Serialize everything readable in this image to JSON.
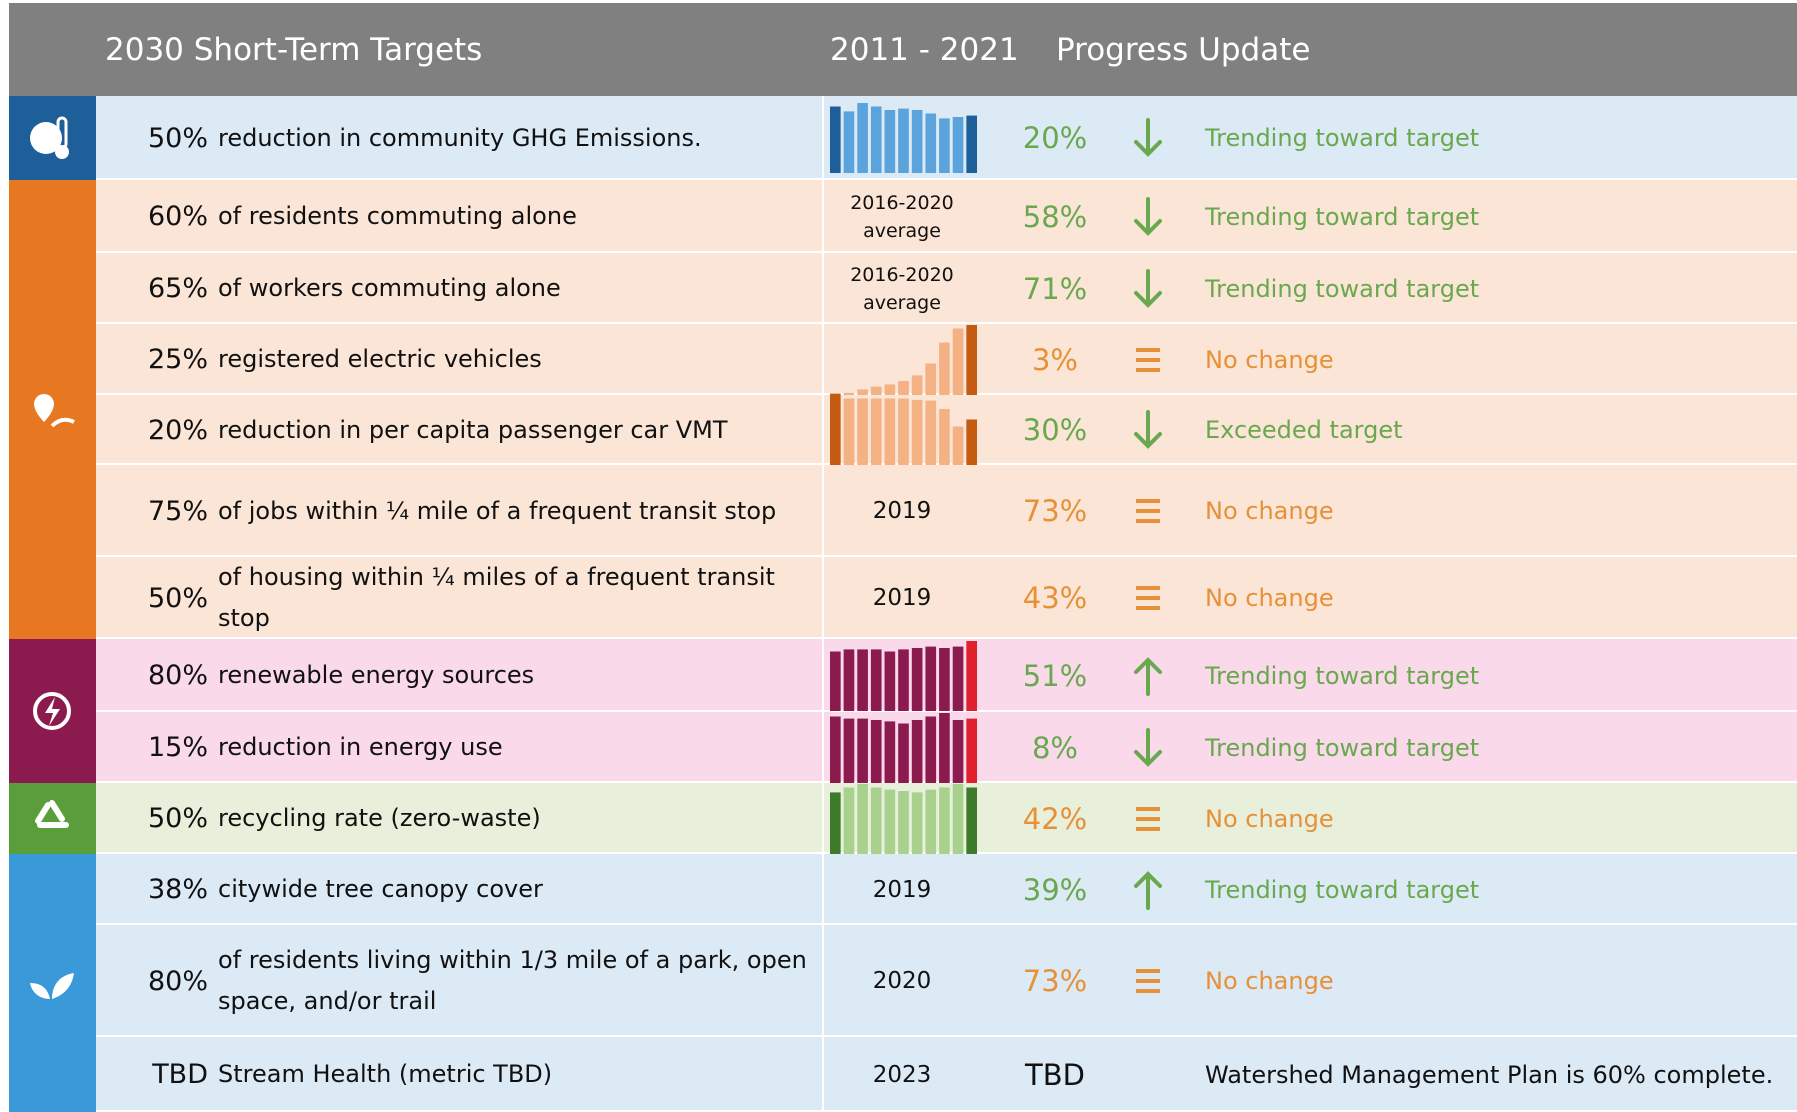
{
  "header": {
    "targets": "2030 Short-Term Targets",
    "period": "2011 - 2021",
    "progress": "Progress Update"
  },
  "groups": [
    {
      "icon": "climate",
      "color": "#1f5f99",
      "background": "#dceaf6",
      "spark_dark": "#1f5f99",
      "spark_light": "#5ba3dc",
      "spark_end": "#1f5f99",
      "rows": [
        {
          "target": "50%",
          "description": "reduction in community GHG Emissions.",
          "period": null,
          "sparkline": [
            95,
            88,
            100,
            95,
            90,
            92,
            90,
            85,
            78,
            80,
            82
          ],
          "result": "20%",
          "trend": "down",
          "status": "Trending toward target",
          "status_color": "#6aa84f"
        }
      ]
    },
    {
      "icon": "transport",
      "color": "#e87722",
      "background": "#fbe5d6",
      "spark_dark": "#c55a11",
      "spark_light": "#f4b183",
      "spark_end": "#c55a11",
      "rows": [
        {
          "target": "60%",
          "description": "of residents commuting alone",
          "period": "2016-2020 average",
          "sparkline": null,
          "result": "58%",
          "trend": "down",
          "status": "Trending toward target",
          "status_color": "#6aa84f"
        },
        {
          "target": "65%",
          "description": "of workers commuting alone",
          "period": "2016-2020 average",
          "sparkline": null,
          "result": "71%",
          "trend": "down",
          "status": "Trending toward target",
          "status_color": "#6aa84f"
        },
        {
          "target": "25%",
          "description": "registered electric vehicles",
          "period": null,
          "sparkline": [
            2,
            3,
            8,
            12,
            15,
            20,
            28,
            45,
            75,
            95,
            100
          ],
          "result": "3%",
          "trend": "none",
          "status": "No change",
          "status_color": "#e69138"
        },
        {
          "target": "20%",
          "description": "reduction in per capita passenger car VMT",
          "period": null,
          "sparkline": [
            100,
            95,
            95,
            95,
            95,
            95,
            93,
            92,
            80,
            55,
            65
          ],
          "result": "30%",
          "trend": "down",
          "status": "Exceeded target",
          "status_color": "#6aa84f"
        },
        {
          "target": "75%",
          "description": "of jobs within ¼ mile of a frequent transit stop",
          "period": "2019",
          "sparkline": null,
          "result": "73%",
          "trend": "none",
          "status": "No change",
          "status_color": "#e69138"
        },
        {
          "target": "50%",
          "description": "of housing within ¼ miles of a frequent transit stop",
          "period": "2019",
          "sparkline": null,
          "result": "43%",
          "trend": "none",
          "status": "No change",
          "status_color": "#e69138"
        }
      ]
    },
    {
      "icon": "energy",
      "color": "#8b1a4f",
      "background": "#f9d9ea",
      "spark_dark": "#8b1a4f",
      "spark_light": "#8b1a4f",
      "spark_end": "#e0202c",
      "rows": [
        {
          "target": "80%",
          "description": "renewable energy sources",
          "period": null,
          "sparkline": [
            85,
            88,
            88,
            88,
            85,
            88,
            90,
            92,
            90,
            92,
            100
          ],
          "result": "51%",
          "trend": "up",
          "status": "Trending toward target",
          "status_color": "#6aa84f"
        },
        {
          "target": "15%",
          "description": "reduction in energy use",
          "period": null,
          "sparkline": [
            95,
            92,
            92,
            90,
            88,
            85,
            90,
            95,
            100,
            90,
            92
          ],
          "result": "8%",
          "trend": "down",
          "status": "Trending toward target",
          "status_color": "#6aa84f"
        }
      ]
    },
    {
      "icon": "waste",
      "color": "#5a9e3c",
      "background": "#e8f0dc",
      "spark_dark": "#3d7a2a",
      "spark_light": "#a9d18e",
      "spark_end": "#3d7a2a",
      "rows": [
        {
          "target": "50%",
          "description": "recycling rate (zero-waste)",
          "period": null,
          "sparkline": [
            88,
            95,
            100,
            95,
            92,
            90,
            88,
            92,
            95,
            100,
            95
          ],
          "result": "42%",
          "trend": "none",
          "status": "No change",
          "status_color": "#e69138"
        }
      ]
    },
    {
      "icon": "nature",
      "color": "#3a9ad9",
      "background": "#dceaf6",
      "spark_dark": "#1f5f99",
      "spark_light": "#5ba3dc",
      "spark_end": "#1f5f99",
      "rows": [
        {
          "target": "38%",
          "description": "citywide tree canopy cover",
          "period": "2019",
          "sparkline": null,
          "result": "39%",
          "trend": "up",
          "status": "Trending toward target",
          "status_color": "#6aa84f"
        },
        {
          "target": "80%",
          "description": "of residents living within 1/3 mile of a park, open space, and/or trail",
          "period": "2020",
          "sparkline": null,
          "result": "73%",
          "trend": "none",
          "status": "No change",
          "status_color": "#e69138"
        },
        {
          "target": "TBD",
          "description": "Stream Health (metric TBD)",
          "period": "2023",
          "sparkline": null,
          "result": "TBD",
          "trend": null,
          "status": "Watershed Management Plan is 60% complete.",
          "status_color": "#111111"
        }
      ]
    }
  ]
}
